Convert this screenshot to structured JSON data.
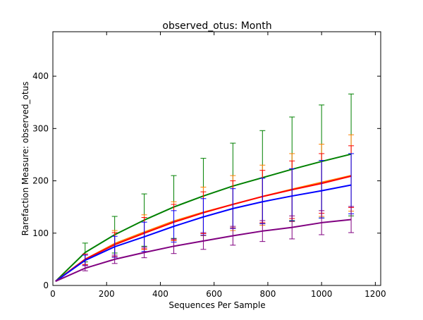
{
  "chart_data": {
    "type": "line",
    "title": "observed_otus: Month",
    "xlabel": "Sequences Per Sample",
    "ylabel": "Rarefaction Measure: observed_otus",
    "xlim": [
      0,
      1220
    ],
    "ylim": [
      0,
      485
    ],
    "xticks": [
      0,
      200,
      400,
      600,
      800,
      1000,
      1200
    ],
    "yticks": [
      0,
      100,
      200,
      300,
      400
    ],
    "xticklabels": [
      "0",
      "200",
      "400",
      "600",
      "800",
      "1000",
      "1200"
    ],
    "yticklabels": [
      "0",
      "100",
      "200",
      "300",
      "400"
    ],
    "grid": false,
    "x": [
      10,
      120,
      230,
      340,
      450,
      560,
      670,
      780,
      890,
      1000,
      1110
    ],
    "series": [
      {
        "color": "#008000",
        "values": [
          8,
          63,
          97,
          125,
          150,
          171,
          190,
          206,
          222,
          237,
          251
        ],
        "err_low": [
          0,
          18,
          35,
          50,
          60,
          72,
          80,
          88,
          98,
          108,
          118
        ],
        "err_high": [
          0,
          18,
          35,
          50,
          60,
          72,
          82,
          90,
          100,
          108,
          115
        ]
      },
      {
        "color": "#ff8000",
        "values": [
          8,
          50,
          80,
          102,
          123,
          140,
          155,
          170,
          184,
          197,
          210
        ],
        "err_low": [
          0,
          10,
          25,
          33,
          37,
          45,
          50,
          55,
          62,
          65,
          68
        ],
        "err_high": [
          0,
          10,
          25,
          33,
          37,
          48,
          55,
          60,
          68,
          73,
          78
        ]
      },
      {
        "color": "#ff0000",
        "values": [
          8,
          50,
          78,
          100,
          121,
          139,
          155,
          170,
          183,
          195,
          209
        ],
        "err_low": [
          0,
          10,
          23,
          30,
          34,
          40,
          45,
          50,
          55,
          57,
          60
        ],
        "err_high": [
          0,
          10,
          23,
          30,
          34,
          40,
          45,
          50,
          55,
          57,
          58
        ]
      },
      {
        "color": "#0000ff",
        "values": [
          8,
          48,
          74,
          93,
          113,
          131,
          147,
          160,
          171,
          181,
          192
        ],
        "err_low": [
          0,
          10,
          20,
          28,
          30,
          35,
          38,
          42,
          48,
          52,
          55
        ],
        "err_high": [
          0,
          10,
          20,
          28,
          30,
          35,
          38,
          45,
          52,
          58,
          60
        ]
      },
      {
        "color": "#800080",
        "values": [
          8,
          33,
          50,
          63,
          75,
          85,
          95,
          104,
          111,
          120,
          126
        ],
        "err_low": [
          0,
          5,
          8,
          10,
          14,
          16,
          18,
          20,
          22,
          23,
          25
        ],
        "err_high": [
          0,
          5,
          8,
          10,
          14,
          16,
          18,
          20,
          22,
          23,
          25
        ]
      }
    ]
  }
}
